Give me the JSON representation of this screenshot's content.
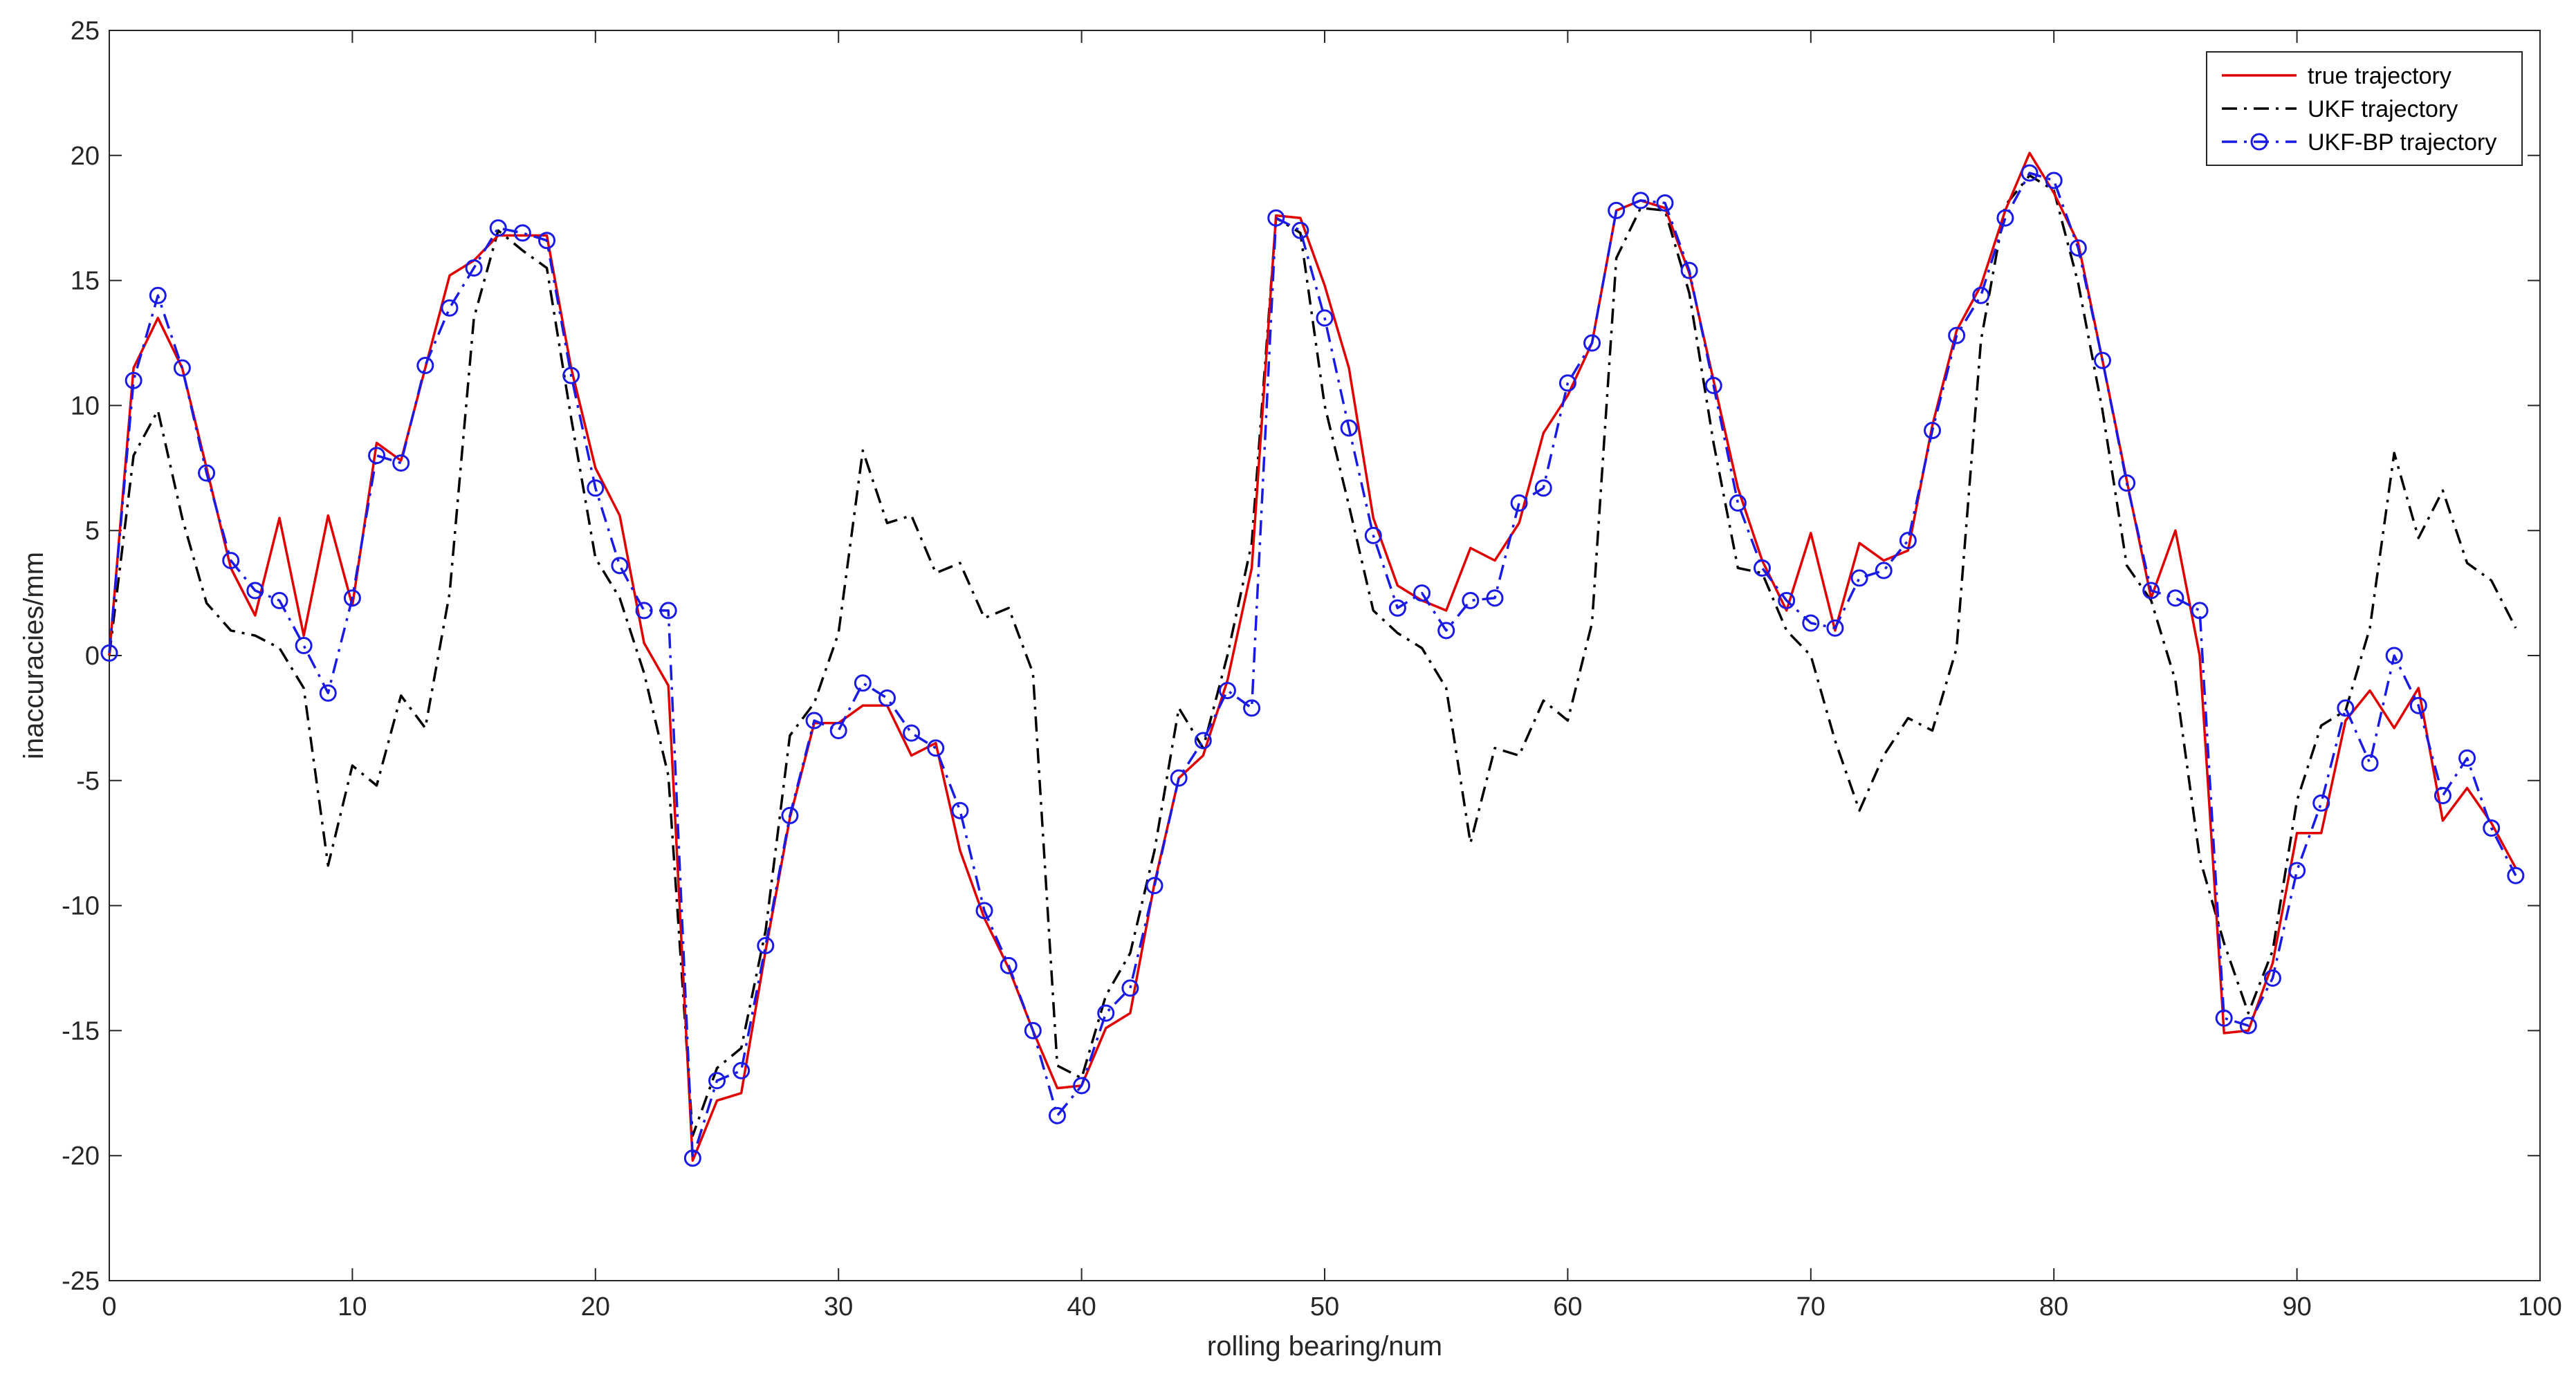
{
  "chart_data": {
    "type": "line",
    "title": "",
    "xlabel": "rolling bearing/num",
    "ylabel": "inaccuracies/mm",
    "xlim": [
      0,
      100
    ],
    "ylim": [
      -25,
      25
    ],
    "xticks": [
      0,
      10,
      20,
      30,
      40,
      50,
      60,
      70,
      80,
      90,
      100
    ],
    "yticks": [
      -25,
      -20,
      -15,
      -10,
      -5,
      0,
      5,
      10,
      15,
      20,
      25
    ],
    "grid": false,
    "legend_position": "top-right",
    "x": [
      0,
      1,
      2,
      3,
      4,
      5,
      6,
      7,
      8,
      9,
      10,
      11,
      12,
      13,
      14,
      15,
      16,
      17,
      18,
      19,
      20,
      21,
      22,
      23,
      24,
      25,
      26,
      27,
      28,
      29,
      30,
      31,
      32,
      33,
      34,
      35,
      36,
      37,
      38,
      39,
      40,
      41,
      42,
      43,
      44,
      45,
      46,
      47,
      48,
      49,
      50,
      51,
      52,
      53,
      54,
      55,
      56,
      57,
      58,
      59,
      60,
      61,
      62,
      63,
      64,
      65,
      66,
      67,
      68,
      69,
      70,
      71,
      72,
      73,
      74,
      75,
      76,
      77,
      78,
      79,
      80,
      81,
      82,
      83,
      84,
      85,
      86,
      87,
      88,
      89,
      90,
      91,
      92,
      93,
      94,
      95,
      96,
      97,
      98,
      99
    ],
    "series": [
      {
        "name": "true trajectory",
        "color": "#e00000",
        "line_style": "solid",
        "marker": "none",
        "values": [
          0,
          11.5,
          13.5,
          11.5,
          7.5,
          3.5,
          1.6,
          5.5,
          0.8,
          5.6,
          2.0,
          8.5,
          7.8,
          11.5,
          15.2,
          15.8,
          16.8,
          16.8,
          16.8,
          11.5,
          7.5,
          5.6,
          0.5,
          -1.2,
          -20.2,
          -17.8,
          -17.5,
          -11.8,
          -6.5,
          -2.7,
          -2.7,
          -2.0,
          -2.0,
          -4.0,
          -3.5,
          -7.8,
          -10.5,
          -12.5,
          -15.0,
          -17.3,
          -17.2,
          -14.9,
          -14.3,
          -9.1,
          -4.9,
          -4.0,
          -1.0,
          3.5,
          17.6,
          17.5,
          14.8,
          11.5,
          5.5,
          2.8,
          2.2,
          1.8,
          4.3,
          3.8,
          5.3,
          8.9,
          10.4,
          12.5,
          17.8,
          18.2,
          17.9,
          15.3,
          11.0,
          6.7,
          3.8,
          1.8,
          4.9,
          1.0,
          4.5,
          3.8,
          4.2,
          9.2,
          13.0,
          14.8,
          17.8,
          20.1,
          18.5,
          16.5,
          11.8,
          7.0,
          2.3,
          5.0,
          0,
          -15.1,
          -15.0,
          -12.3,
          -7.1,
          -7.1,
          -2.6,
          -1.4,
          -2.9,
          -1.3,
          -6.6,
          -5.3,
          -6.7,
          -8.5
        ]
      },
      {
        "name": "UKF trajectory",
        "color": "#000000",
        "line_style": "dash-dot",
        "marker": "none",
        "values": [
          0,
          8.0,
          9.8,
          5.5,
          2.1,
          1.0,
          0.8,
          0.3,
          -1.3,
          -8.4,
          -4.4,
          -5.2,
          -1.6,
          -2.9,
          2.5,
          13.5,
          17.0,
          16.2,
          15.5,
          9.5,
          3.9,
          2.3,
          -0.7,
          -4.8,
          -19.2,
          -16.5,
          -15.7,
          -11.0,
          -3.2,
          -1.9,
          0.9,
          8.2,
          5.3,
          5.6,
          3.3,
          3.7,
          1.5,
          1.9,
          -0.7,
          -16.4,
          -16.9,
          -13.6,
          -11.9,
          -7.8,
          -2.1,
          -3.7,
          0,
          4.5,
          17.5,
          16.9,
          10.0,
          6.0,
          1.8,
          0.9,
          0.3,
          -1.3,
          -7.5,
          -3.7,
          -4.0,
          -1.8,
          -2.6,
          1.3,
          15.9,
          17.9,
          17.8,
          14.5,
          8.5,
          3.5,
          3.3,
          1.0,
          0,
          -3.4,
          -6.2,
          -4.0,
          -2.5,
          -3.0,
          0.3,
          12.6,
          18.0,
          19.2,
          18.6,
          14.9,
          9.8,
          3.6,
          2.2,
          -1.0,
          -8.1,
          -11.5,
          -14.3,
          -11.8,
          -5.8,
          -2.8,
          -2.2,
          1.1,
          8.1,
          4.7,
          6.6,
          3.7,
          3.0,
          1.1
        ]
      },
      {
        "name": "UKF-BP trajectory",
        "color": "#1a1ae6",
        "line_style": "dash-dot",
        "marker": "circle",
        "values": [
          0.1,
          11.0,
          14.4,
          11.5,
          7.3,
          3.8,
          2.6,
          2.2,
          0.4,
          -1.5,
          2.3,
          8.0,
          7.7,
          11.6,
          13.9,
          15.5,
          17.1,
          16.9,
          16.6,
          11.2,
          6.7,
          3.6,
          1.8,
          1.8,
          -20.1,
          -17.0,
          -16.6,
          -11.6,
          -6.4,
          -2.6,
          -3.0,
          -1.1,
          -1.7,
          -3.1,
          -3.7,
          -6.2,
          -10.2,
          -12.4,
          -15.0,
          -18.4,
          -17.2,
          -14.3,
          -13.3,
          -9.2,
          -4.9,
          -3.4,
          -1.4,
          -2.1,
          17.5,
          17.0,
          13.5,
          9.1,
          4.8,
          1.9,
          2.5,
          1.0,
          2.2,
          2.3,
          6.1,
          6.7,
          10.9,
          12.5,
          17.8,
          18.2,
          18.1,
          15.4,
          10.8,
          6.1,
          3.5,
          2.2,
          1.3,
          1.1,
          3.1,
          3.4,
          4.6,
          9.0,
          12.8,
          14.4,
          17.5,
          19.3,
          19.0,
          16.3,
          11.8,
          6.9,
          2.6,
          2.3,
          1.8,
          -14.5,
          -14.8,
          -12.9,
          -8.6,
          -5.9,
          -2.1,
          -4.3,
          0,
          -2.0,
          -5.6,
          -4.1,
          -6.9,
          -8.8
        ]
      }
    ]
  }
}
